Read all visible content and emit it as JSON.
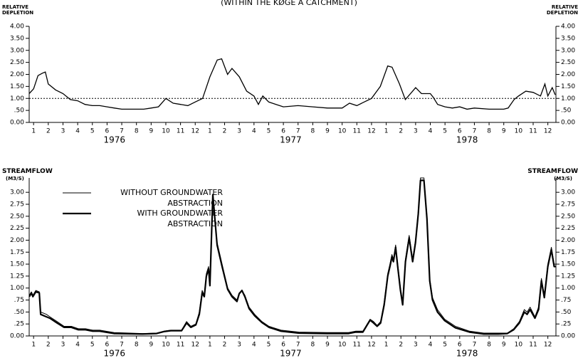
{
  "chart_data": [
    {
      "type": "line",
      "title": "(WITHIN THE KØGE A CATCHMENT)",
      "y_label": "RELATIVE\nDEPLETION",
      "color": "#000000",
      "reference_line": 1,
      "x": [
        0.7,
        1.0,
        1.3,
        1.6,
        1.8,
        2.0,
        2.5,
        3.0,
        3.5,
        4.0,
        4.5,
        5.0,
        5.5,
        6.0,
        6.5,
        7.0,
        8.0,
        8.5,
        9.0,
        9.5,
        10.0,
        10.5,
        11.0,
        11.5,
        12.0,
        12.5,
        13.0,
        13.5,
        13.8,
        14.2,
        14.5,
        15.0,
        15.5,
        16.0,
        16.3,
        16.6,
        17.0,
        17.5,
        18.0,
        19.0,
        20.0,
        21.0,
        22.0,
        22.5,
        23.0,
        23.5,
        24.0,
        24.6,
        25.1,
        25.4,
        25.9,
        26.3,
        26.8,
        27.0,
        27.4,
        28.0,
        28.2,
        28.5,
        29.0,
        29.5,
        30.0,
        30.5,
        31.0,
        32.0,
        33.0,
        33.3,
        33.7,
        34.0,
        34.5,
        35.0,
        35.5,
        35.8,
        36.0,
        36.3,
        36.5
      ],
      "values": [
        1.2,
        1.4,
        1.95,
        2.05,
        2.1,
        1.6,
        1.35,
        1.2,
        0.95,
        0.9,
        0.75,
        0.7,
        0.7,
        0.65,
        0.6,
        0.55,
        0.55,
        0.55,
        0.6,
        0.65,
        1.0,
        0.8,
        0.75,
        0.7,
        0.85,
        1.0,
        1.9,
        2.6,
        2.65,
        2.0,
        2.25,
        1.9,
        1.3,
        1.1,
        0.75,
        1.1,
        0.85,
        0.75,
        0.65,
        0.7,
        0.65,
        0.6,
        0.6,
        0.8,
        0.7,
        0.85,
        1.0,
        1.5,
        2.35,
        2.3,
        1.6,
        0.95,
        1.3,
        1.45,
        1.2,
        1.2,
        1.05,
        0.75,
        0.65,
        0.6,
        0.65,
        0.55,
        0.6,
        0.55,
        0.55,
        0.6,
        0.95,
        1.1,
        1.3,
        1.25,
        1.1,
        1.6,
        1.1,
        1.45,
        1.15
      ],
      "xlim": [
        0.7,
        36.55
      ],
      "xticks": [
        1,
        2,
        3,
        4,
        5,
        6,
        7,
        8,
        9,
        10,
        11,
        12,
        {
          "value": 13,
          "label": "1"
        },
        {
          "value": 14,
          "label": "2"
        },
        {
          "value": 15,
          "label": "3"
        },
        {
          "value": 16,
          "label": "4"
        },
        {
          "value": 17,
          "label": "5"
        },
        {
          "value": 18,
          "label": "6"
        },
        {
          "value": 19,
          "label": "7"
        },
        {
          "value": 20,
          "label": "8"
        },
        {
          "value": 21,
          "label": "9"
        },
        {
          "value": 22,
          "label": "10"
        },
        {
          "value": 23,
          "label": "11"
        },
        {
          "value": 24,
          "label": "12"
        },
        {
          "value": 25,
          "label": "1"
        },
        {
          "value": 26,
          "label": "2"
        },
        {
          "value": 27,
          "label": "3"
        },
        {
          "value": 28,
          "label": "4"
        },
        {
          "value": 29,
          "label": "5"
        },
        {
          "value": 30,
          "label": "6"
        },
        {
          "value": 31,
          "label": "7"
        },
        {
          "value": 32,
          "label": "8"
        },
        {
          "value": 33,
          "label": "9"
        },
        {
          "value": 34,
          "label": "10"
        },
        {
          "value": 35,
          "label": "11"
        },
        {
          "value": 36,
          "label": "12"
        }
      ],
      "years": [
        "1976",
        "1977",
        "1978"
      ],
      "ylim": [
        0,
        4
      ],
      "yticks": [
        {
          "value": 0,
          "label": "0.00"
        },
        {
          "value": 0.5,
          "label": ".50"
        },
        {
          "value": 1,
          "label": "1.00"
        },
        {
          "value": 1.5,
          "label": "1.50"
        },
        {
          "value": 2,
          "label": "2.00"
        },
        {
          "value": 2.5,
          "label": "2.50"
        },
        {
          "value": 3,
          "label": "3.00"
        },
        {
          "value": 3.5,
          "label": "3.50"
        },
        {
          "value": 4,
          "label": "4.00"
        }
      ]
    },
    {
      "type": "line",
      "y_label": "STREAMFLOW",
      "y_unit": "(M3/S)",
      "x": [
        0.71,
        0.85,
        0.95,
        1.15,
        1.39,
        1.48,
        1.87,
        2.11,
        2.6,
        3.08,
        3.57,
        4.05,
        4.53,
        5.02,
        5.5,
        6.47,
        8.41,
        9.37,
        9.86,
        10.34,
        11.07,
        11.41,
        11.7,
        12.04,
        12.28,
        12.47,
        12.62,
        12.76,
        12.91,
        13.0,
        13.2,
        13.49,
        13.83,
        14.21,
        14.5,
        14.84,
        14.99,
        15.18,
        15.38,
        15.67,
        16.05,
        16.54,
        17.02,
        17.84,
        19.05,
        20.99,
        22.44,
        22.93,
        23.41,
        23.9,
        24.14,
        24.38,
        24.62,
        24.86,
        25.1,
        25.25,
        25.39,
        25.49,
        25.64,
        25.78,
        25.97,
        26.12,
        26.31,
        26.56,
        26.8,
        26.99,
        27.18,
        27.33,
        27.57,
        27.77,
        27.96,
        28.15,
        28.49,
        28.98,
        29.71,
        30.67,
        31.64,
        32.61,
        33.24,
        33.67,
        34.06,
        34.4,
        34.59,
        34.79,
        35.12,
        35.37,
        35.56,
        35.76,
        36.0,
        36.24,
        36.43,
        36.53
      ],
      "series": [
        {
          "name": "WITHOUT GROUNDWATER ABSTRACTION",
          "color": "#000000",
          "stroke_width": 1,
          "values": [
            0.85,
            0.92,
            0.85,
            0.95,
            0.92,
            0.5,
            0.45,
            0.4,
            0.3,
            0.2,
            0.2,
            0.15,
            0.15,
            0.12,
            0.12,
            0.07,
            0.05,
            0.06,
            0.1,
            0.12,
            0.12,
            0.3,
            0.2,
            0.25,
            0.5,
            0.95,
            0.85,
            1.3,
            1.45,
            1.1,
            2.9,
            1.95,
            1.5,
            1.0,
            0.85,
            0.75,
            0.9,
            0.95,
            0.85,
            0.6,
            0.45,
            0.3,
            0.2,
            0.12,
            0.08,
            0.07,
            0.07,
            0.1,
            0.1,
            0.35,
            0.3,
            0.22,
            0.3,
            0.7,
            1.3,
            1.5,
            1.7,
            1.6,
            1.9,
            1.5,
            1.0,
            0.7,
            1.6,
            2.1,
            1.6,
            2.0,
            2.6,
            3.3,
            3.3,
            2.5,
            1.2,
            0.8,
            0.55,
            0.35,
            0.2,
            0.1,
            0.06,
            0.06,
            0.06,
            0.15,
            0.3,
            0.55,
            0.5,
            0.6,
            0.4,
            0.6,
            1.2,
            0.85,
            1.5,
            1.85,
            1.5,
            1.5
          ]
        },
        {
          "name": "WITH GROUNDWATER ABSTRACTION",
          "color": "#000000",
          "stroke_width": 2.2,
          "values": [
            0.82,
            0.9,
            0.82,
            0.92,
            0.9,
            0.45,
            0.4,
            0.37,
            0.27,
            0.18,
            0.18,
            0.13,
            0.13,
            0.1,
            0.1,
            0.05,
            0.04,
            0.05,
            0.09,
            0.11,
            0.11,
            0.27,
            0.18,
            0.23,
            0.45,
            0.9,
            0.82,
            1.25,
            1.4,
            1.05,
            2.95,
            1.9,
            1.45,
            0.97,
            0.82,
            0.72,
            0.88,
            0.95,
            0.82,
            0.57,
            0.42,
            0.28,
            0.18,
            0.1,
            0.06,
            0.05,
            0.05,
            0.08,
            0.08,
            0.33,
            0.27,
            0.2,
            0.27,
            0.65,
            1.25,
            1.45,
            1.65,
            1.55,
            1.85,
            1.45,
            0.95,
            0.65,
            1.55,
            2.05,
            1.55,
            1.95,
            2.55,
            3.25,
            3.25,
            2.45,
            1.15,
            0.75,
            0.5,
            0.32,
            0.17,
            0.08,
            0.04,
            0.04,
            0.05,
            0.13,
            0.27,
            0.5,
            0.45,
            0.55,
            0.37,
            0.55,
            1.15,
            0.8,
            1.45,
            1.8,
            1.45,
            1.45
          ]
        }
      ],
      "xlim": [
        0.7,
        36.55
      ],
      "xticks": [
        1,
        2,
        3,
        4,
        5,
        6,
        7,
        8,
        9,
        10,
        11,
        12,
        {
          "value": 13,
          "label": "1"
        },
        {
          "value": 14,
          "label": "2"
        },
        {
          "value": 15,
          "label": "3"
        },
        {
          "value": 16,
          "label": "4"
        },
        {
          "value": 17,
          "label": "5"
        },
        {
          "value": 18,
          "label": "6"
        },
        {
          "value": 19,
          "label": "7"
        },
        {
          "value": 20,
          "label": "8"
        },
        {
          "value": 21,
          "label": "9"
        },
        {
          "value": 22,
          "label": "10"
        },
        {
          "value": 23,
          "label": "11"
        },
        {
          "value": 24,
          "label": "12"
        },
        {
          "value": 25,
          "label": "1"
        },
        {
          "value": 26,
          "label": "2"
        },
        {
          "value": 27,
          "label": "3"
        },
        {
          "value": 28,
          "label": "4"
        },
        {
          "value": 29,
          "label": "5"
        },
        {
          "value": 30,
          "label": "6"
        },
        {
          "value": 31,
          "label": "7"
        },
        {
          "value": 32,
          "label": "8"
        },
        {
          "value": 33,
          "label": "9"
        },
        {
          "value": 34,
          "label": "10"
        },
        {
          "value": 35,
          "label": "11"
        },
        {
          "value": 36,
          "label": "12"
        }
      ],
      "years": [
        "1976",
        "1977",
        "1978"
      ],
      "ylim": [
        0,
        3.3
      ],
      "yticks": [
        {
          "value": 0,
          "label": "0.00"
        },
        {
          "value": 0.25,
          "label": ".25"
        },
        {
          "value": 0.5,
          "label": ".50"
        },
        {
          "value": 0.75,
          "label": ".75"
        },
        {
          "value": 1,
          "label": "1.00"
        },
        {
          "value": 1.25,
          "label": "1.25"
        },
        {
          "value": 1.5,
          "label": "1.50"
        },
        {
          "value": 1.75,
          "label": "1.75"
        },
        {
          "value": 2,
          "label": "2.00"
        },
        {
          "value": 2.25,
          "label": "2.25"
        },
        {
          "value": 2.5,
          "label": "2.50"
        },
        {
          "value": 2.75,
          "label": "2.75"
        },
        {
          "value": 3,
          "label": "3.00"
        }
      ]
    }
  ]
}
